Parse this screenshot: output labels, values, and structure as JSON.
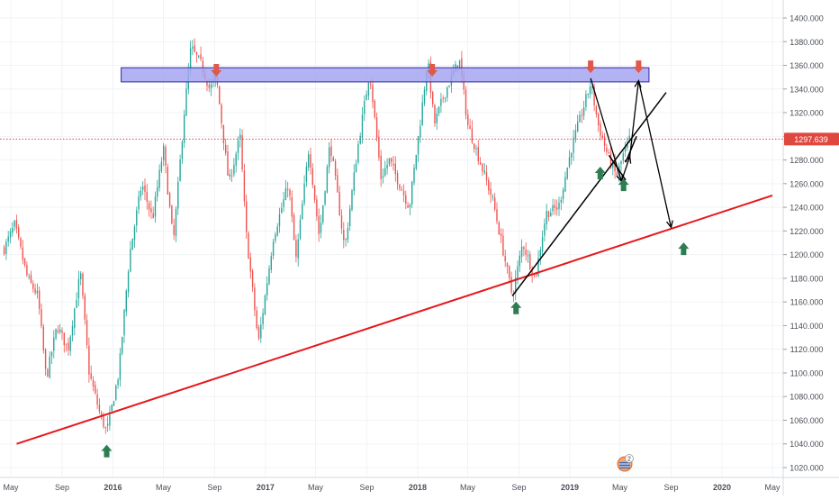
{
  "chart_data": {
    "type": "candlestick",
    "instrument_last_price": "1297.639",
    "x_tick_labels": [
      "May",
      "Sep",
      "2016",
      "May",
      "Sep",
      "2017",
      "May",
      "Sep",
      "2018",
      "May",
      "Sep",
      "2019",
      "May",
      "Sep",
      "2020",
      "May"
    ],
    "y_tick_labels": [
      "1400.000",
      "1380.000",
      "1360.000",
      "1340.000",
      "1320.000",
      "1300.000",
      "1280.000",
      "1260.000",
      "1240.000",
      "1220.000",
      "1200.000",
      "1180.000",
      "1160.000",
      "1140.000",
      "1120.000",
      "1100.000",
      "1080.000",
      "1060.000",
      "1040.000",
      "1020.000"
    ],
    "ylim": [
      1015,
      1410
    ],
    "x_domain": [
      "2015-05",
      "2020-05"
    ],
    "price_path": [
      [
        "2015-04-15",
        1205
      ],
      [
        "2015-05-10",
        1225
      ],
      [
        "2015-06-10",
        1180
      ],
      [
        "2015-07-05",
        1165
      ],
      [
        "2015-07-25",
        1095
      ],
      [
        "2015-08-20",
        1140
      ],
      [
        "2015-09-15",
        1120
      ],
      [
        "2015-10-15",
        1185
      ],
      [
        "2015-11-05",
        1100
      ],
      [
        "2015-12-01",
        1065
      ],
      [
        "2015-12-17",
        1050
      ],
      [
        "2016-01-15",
        1100
      ],
      [
        "2016-02-10",
        1200
      ],
      [
        "2016-03-10",
        1260
      ],
      [
        "2016-04-05",
        1230
      ],
      [
        "2016-05-01",
        1290
      ],
      [
        "2016-05-25",
        1210
      ],
      [
        "2016-06-20",
        1320
      ],
      [
        "2016-07-06",
        1375
      ],
      [
        "2016-08-01",
        1360
      ],
      [
        "2016-08-20",
        1340
      ],
      [
        "2016-09-05",
        1350
      ],
      [
        "2016-10-05",
        1260
      ],
      [
        "2016-11-01",
        1300
      ],
      [
        "2016-11-15",
        1220
      ],
      [
        "2016-12-15",
        1125
      ],
      [
        "2017-01-20",
        1215
      ],
      [
        "2017-02-25",
        1260
      ],
      [
        "2017-03-15",
        1195
      ],
      [
        "2017-04-15",
        1290
      ],
      [
        "2017-05-10",
        1215
      ],
      [
        "2017-06-05",
        1295
      ],
      [
        "2017-07-10",
        1205
      ],
      [
        "2017-08-10",
        1290
      ],
      [
        "2017-09-08",
        1355
      ],
      [
        "2017-10-05",
        1265
      ],
      [
        "2017-10-25",
        1280
      ],
      [
        "2017-12-12",
        1240
      ],
      [
        "2018-01-10",
        1320
      ],
      [
        "2018-01-25",
        1365
      ],
      [
        "2018-02-10",
        1310
      ],
      [
        "2018-03-05",
        1335
      ],
      [
        "2018-04-11",
        1365
      ],
      [
        "2018-05-01",
        1310
      ],
      [
        "2018-05-20",
        1290
      ],
      [
        "2018-07-01",
        1245
      ],
      [
        "2018-08-16",
        1165
      ],
      [
        "2018-09-10",
        1210
      ],
      [
        "2018-10-10",
        1180
      ],
      [
        "2018-11-05",
        1235
      ],
      [
        "2018-12-05",
        1240
      ],
      [
        "2019-01-05",
        1290
      ],
      [
        "2019-02-20",
        1345
      ],
      [
        "2019-03-10",
        1310
      ],
      [
        "2019-04-01",
        1285
      ],
      [
        "2019-04-23",
        1266
      ],
      [
        "2019-05-10",
        1285
      ],
      [
        "2019-05-25",
        1297.6
      ]
    ],
    "annotations": {
      "resistance_zone": {
        "x": [
          "2016-05-25",
          "2019-07-10"
        ],
        "y": [
          1346,
          1358
        ]
      },
      "rising_support_line": {
        "from": [
          "2015-05-15",
          1040
        ],
        "to": [
          "2020-05-01",
          1250
        ]
      },
      "short_trend_line": {
        "from": [
          "2018-08-16",
          1165
        ],
        "to": [
          "2019-08-20",
          1337
        ]
      },
      "last_price_line": 1297.639,
      "projection_path": [
        [
          "2019-02-20",
          1349
        ],
        [
          "2019-05-05",
          1262
        ],
        [
          "2019-05-25",
          1283
        ],
        [
          "2019-06-15",
          1347
        ],
        [
          "2019-09-01",
          1223
        ]
      ],
      "pattern_lines": [
        {
          "from": [
            "2019-04-05",
            1284
          ],
          "to": [
            "2019-05-15",
            1263
          ]
        },
        {
          "from": [
            "2019-05-15",
            1278
          ],
          "to": [
            "2019-06-10",
            1300
          ]
        }
      ],
      "down_arrows": [
        {
          "date": "2016-09-05",
          "price": 1352
        },
        {
          "date": "2018-02-05",
          "price": 1352
        },
        {
          "date": "2019-02-20",
          "price": 1355
        },
        {
          "date": "2019-06-15",
          "price": 1355
        }
      ],
      "up_arrows": [
        {
          "date": "2015-12-17",
          "price": 1034
        },
        {
          "date": "2018-08-25",
          "price": 1155
        },
        {
          "date": "2019-03-15",
          "price": 1269
        },
        {
          "date": "2019-05-10",
          "price": 1259
        },
        {
          "date": "2019-10-01",
          "price": 1205
        }
      ]
    },
    "colors": {
      "up_candle": "#26a69a",
      "down_candle": "#ef5350",
      "support_line": "#e5181b",
      "resistance_fill": "#a6a4f0",
      "resistance_stroke": "#2a2aa8",
      "arrow_up": "#2e7d52",
      "arrow_down": "#e0584a",
      "price_badge": "#e0473f",
      "drawing": "#000000"
    }
  },
  "badge": {
    "label": "2"
  }
}
